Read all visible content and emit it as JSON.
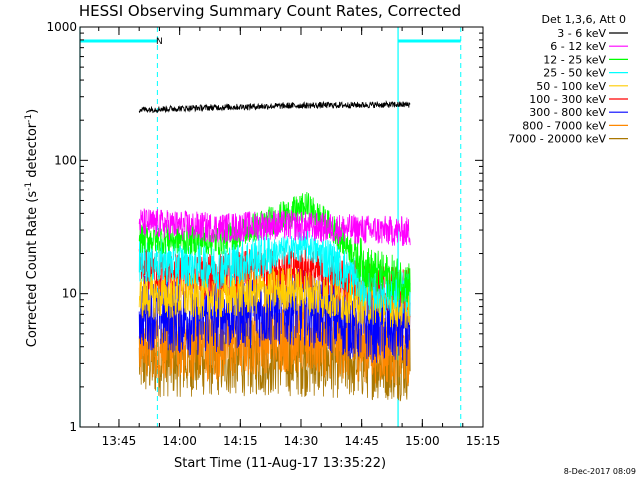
{
  "chart_data": {
    "type": "line",
    "title": "HESSI Observing Summary Count Rates, Corrected",
    "xlabel": "Start Time (11-Aug-17 13:35:22)",
    "ylabel_main": "Corrected Count Rate (s",
    "ylabel_sup1": "-1",
    "ylabel_mid": " detector",
    "ylabel_sup2": "-1",
    "ylabel_end": ")",
    "yscale": "log",
    "xlim": [
      "13:35:22",
      "15:15"
    ],
    "ylim": [
      1,
      1000
    ],
    "x_ticks": [
      "13:45",
      "14:00",
      "14:15",
      "14:30",
      "14:45",
      "15:00",
      "15:15"
    ],
    "y_ticks": [
      "1",
      "10",
      "100",
      "1000"
    ],
    "legend_header": "Det 1,3,6, Att 0",
    "legend_position": "right",
    "timestamp": "8-Dec-2017 08:09",
    "markers": {
      "night_label": "N",
      "saa_lines": [
        "13:35:22",
        "14:54:00"
      ],
      "night_lines": [
        "13:54:30",
        "15:09:30"
      ],
      "bar_segments": [
        [
          "13:35:22",
          "13:54:30"
        ],
        [
          "14:54:00",
          "15:09:30"
        ]
      ]
    },
    "series": [
      {
        "name": "3 - 6 keV",
        "color": "#000000",
        "start": "13:50",
        "end": "14:57",
        "profile": [
          [
            0,
            240
          ],
          [
            0.3,
            250
          ],
          [
            0.6,
            258
          ],
          [
            1.0,
            262
          ]
        ]
      },
      {
        "name": "6 - 12 keV",
        "color": "#ff00ff",
        "start": "13:50",
        "end": "14:57",
        "profile": [
          [
            0,
            34
          ],
          [
            0.3,
            31
          ],
          [
            0.5,
            33
          ],
          [
            0.7,
            31
          ],
          [
            1.0,
            29
          ]
        ]
      },
      {
        "name": "12 - 25 keV",
        "color": "#00ff00",
        "start": "13:50",
        "end": "14:57",
        "profile": [
          [
            0,
            26
          ],
          [
            0.3,
            25
          ],
          [
            0.45,
            33
          ],
          [
            0.62,
            45
          ],
          [
            0.72,
            30
          ],
          [
            0.85,
            15
          ],
          [
            1.0,
            12
          ]
        ]
      },
      {
        "name": "25 - 50 keV",
        "color": "#00ffff",
        "start": "13:50",
        "end": "14:57",
        "profile": [
          [
            0,
            18
          ],
          [
            0.3,
            16
          ],
          [
            0.45,
            19
          ],
          [
            0.62,
            23
          ],
          [
            0.72,
            17
          ],
          [
            0.85,
            11
          ],
          [
            1.0,
            10
          ]
        ]
      },
      {
        "name": "50 - 100 keV",
        "color": "#ffcc00",
        "start": "13:50",
        "end": "14:57",
        "profile": [
          [
            0,
            9.5
          ],
          [
            0.3,
            9.5
          ],
          [
            0.55,
            11
          ],
          [
            0.75,
            9
          ],
          [
            1.0,
            8
          ]
        ]
      },
      {
        "name": "100 - 300 keV",
        "color": "#ff0000",
        "start": "13:50",
        "end": "14:57",
        "profile": [
          [
            0,
            15
          ],
          [
            0.2,
            13
          ],
          [
            0.4,
            14.5
          ],
          [
            0.6,
            15.5
          ],
          [
            0.8,
            12
          ],
          [
            1.0,
            10.5
          ]
        ]
      },
      {
        "name": "300 - 800 keV",
        "color": "#0000ff",
        "start": "13:50",
        "end": "14:57",
        "profile": [
          [
            0,
            7.5
          ],
          [
            0.2,
            6.5
          ],
          [
            0.4,
            7.5
          ],
          [
            0.6,
            8
          ],
          [
            0.8,
            6
          ],
          [
            1.0,
            5.5
          ]
        ]
      },
      {
        "name": "800 - 7000 keV",
        "color": "#ff8800",
        "start": "13:50",
        "end": "14:57",
        "profile": [
          [
            0,
            4.5
          ],
          [
            0.3,
            4.2
          ],
          [
            0.5,
            5
          ],
          [
            0.7,
            4.5
          ],
          [
            1.0,
            3.8
          ]
        ]
      },
      {
        "name": "7000 - 20000 keV",
        "color": "#aa7700",
        "start": "13:50",
        "end": "14:57",
        "profile": [
          [
            0,
            3.2
          ],
          [
            0.5,
            3.3
          ],
          [
            1.0,
            3.0
          ]
        ]
      }
    ]
  }
}
